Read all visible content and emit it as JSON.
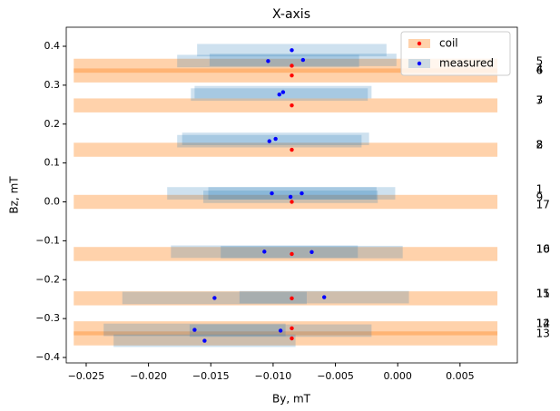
{
  "chart_data": {
    "type": "scatter",
    "title": "X-axis",
    "x_label": "By, mT",
    "y_label": "Bz, mT",
    "xlim": [
      -0.0266,
      0.0096
    ],
    "ylim": [
      -0.414,
      0.449
    ],
    "xticks": [
      {
        "value": -0.025,
        "label": "−0.025"
      },
      {
        "value": -0.02,
        "label": "−0.020"
      },
      {
        "value": -0.015,
        "label": "−0.015"
      },
      {
        "value": -0.01,
        "label": "−0.010"
      },
      {
        "value": -0.005,
        "label": "−0.005"
      },
      {
        "value": 0,
        "label": "0.000"
      },
      0.005
    ],
    "yticks": [
      {
        "value": -0.4,
        "label": "−0.4"
      },
      {
        "value": -0.3,
        "label": "−0.3"
      },
      {
        "value": -0.2,
        "label": "−0.2"
      },
      {
        "value": -0.1,
        "label": "−0.1"
      },
      {
        "value": 0,
        "label": "0.0"
      },
      0.1,
      0.2,
      0.3,
      0.4
    ],
    "grid": false,
    "legend": "upper right",
    "series": [
      {
        "name": "coil",
        "color": "#ff0000",
        "band_color": "#ff7f0e",
        "x": [
          -0.0085,
          -0.0085,
          -0.0085,
          -0.0085,
          -0.0085,
          -0.0085,
          -0.0085,
          -0.0085,
          -0.0085
        ],
        "y": [
          0.35,
          0.325,
          0.248,
          0.134,
          0.0,
          -0.134,
          -0.248,
          -0.325,
          -0.351
        ],
        "band_x": [
          -0.026,
          0.008
        ],
        "yerr": 0.018
      },
      {
        "name": "measured",
        "color": "#0000ff",
        "band_color": "#1f77b4",
        "x": [
          -0.0085,
          -0.0104,
          -0.0076,
          -0.0095,
          -0.0092,
          -0.0103,
          -0.0098,
          -0.0101,
          -0.0077,
          -0.0086,
          -0.0107,
          -0.0069,
          -0.0147,
          -0.0059,
          -0.0163,
          -0.0094,
          -0.0155
        ],
        "y": [
          0.39,
          0.362,
          0.365,
          0.276,
          0.282,
          0.156,
          0.162,
          0.022,
          0.022,
          0.013,
          -0.128,
          -0.129,
          -0.247,
          -0.245,
          -0.329,
          -0.331,
          -0.357
        ],
        "xerr": [
          0.0076,
          0.0073,
          0.0075,
          0.0071,
          0.0071,
          0.0074,
          0.0075,
          0.0084,
          0.0075,
          0.007,
          0.0075,
          0.0073,
          0.0074,
          0.0068,
          0.0073,
          0.0073,
          0.0073
        ],
        "yerr": 0.016
      }
    ],
    "annotations": [
      {
        "text": "5",
        "x": 0.0111,
        "y": 0.36
      },
      {
        "text": "6",
        "x": 0.0111,
        "y": 0.337
      },
      {
        "text": "4",
        "x": 0.0111,
        "y": 0.339
      },
      {
        "text": "3",
        "x": 0.0111,
        "y": 0.26
      },
      {
        "text": "7",
        "x": 0.0111,
        "y": 0.26
      },
      {
        "text": "8",
        "x": 0.0111,
        "y": 0.146
      },
      {
        "text": "2",
        "x": 0.0111,
        "y": 0.146
      },
      {
        "text": "1",
        "x": 0.0111,
        "y": 0.031
      },
      {
        "text": "9",
        "x": 0.0111,
        "y": 0.01
      },
      {
        "text": "17",
        "x": 0.0111,
        "y": -0.008
      },
      {
        "text": "16",
        "x": 0.0111,
        "y": -0.122
      },
      {
        "text": "10",
        "x": 0.0111,
        "y": -0.122
      },
      {
        "text": "15",
        "x": 0.0111,
        "y": -0.237
      },
      {
        "text": "11",
        "x": 0.0111,
        "y": -0.237
      },
      {
        "text": "14",
        "x": 0.0111,
        "y": -0.314
      },
      {
        "text": "12",
        "x": 0.0111,
        "y": -0.314
      },
      {
        "text": "13",
        "x": 0.0111,
        "y": -0.339
      }
    ]
  }
}
